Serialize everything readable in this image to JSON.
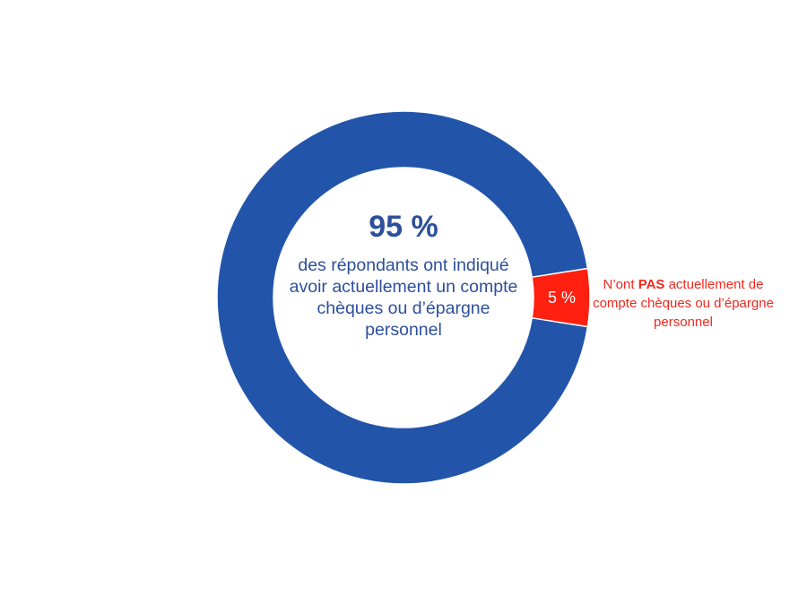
{
  "chart_data": {
    "type": "pie",
    "variant": "donut",
    "categories": [
      "Ont actuellement un compte chèques ou d'épargne personnel",
      "N'ont PAS actuellement de compte chèques ou d'épargne personnel"
    ],
    "values": [
      95,
      5
    ],
    "unit": "%",
    "colors": [
      "#2255AA",
      "#FF2010"
    ],
    "data_labels": [
      "",
      "5 %"
    ],
    "center_value": "95 %",
    "center_text": "des répondants ont indiqué avoir actuellement un compte chèques ou d’épargne personnel",
    "annotation": {
      "prefix": "N’ont ",
      "emphasis": "PAS",
      "suffix": " actuellement de compte chèques ou d’épargne personnel",
      "color": "#F0281E"
    }
  }
}
